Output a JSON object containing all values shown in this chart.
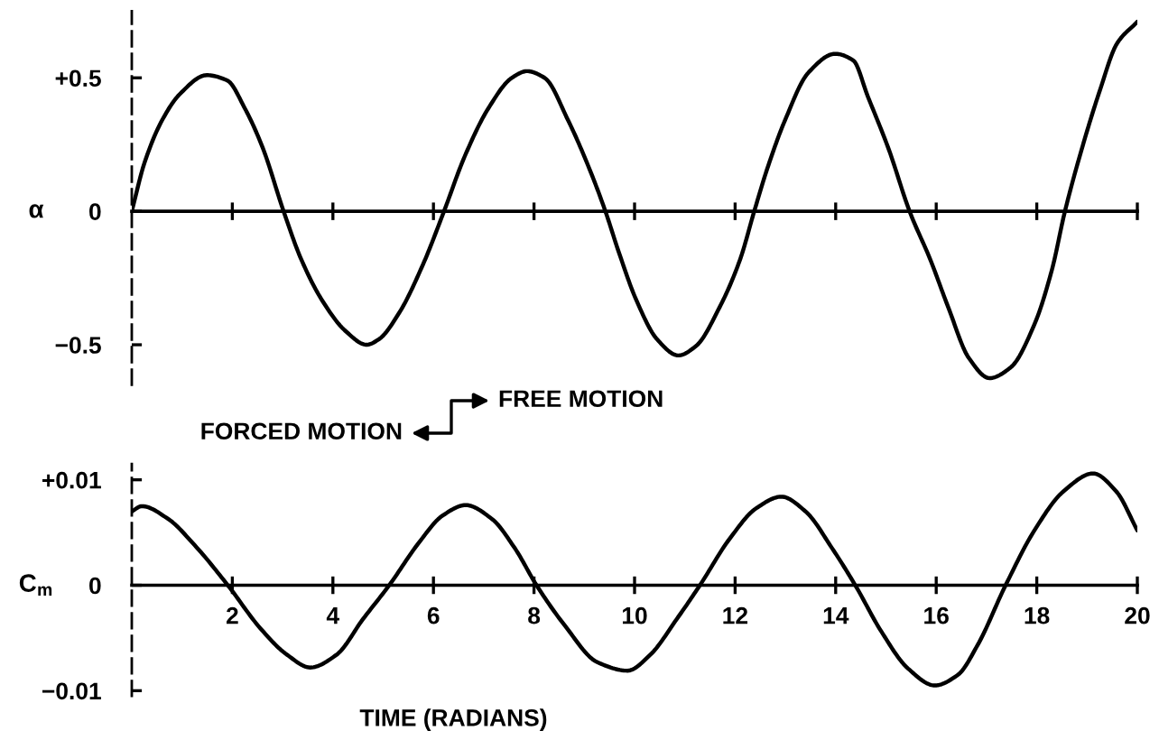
{
  "chart_data": [
    {
      "type": "line",
      "ylabel": "α",
      "tick_labels": "y",
      "xlim": [
        0,
        20
      ],
      "xticks": [
        2,
        4,
        6,
        8,
        10,
        12,
        14,
        16,
        18,
        20
      ],
      "ylim": [
        -0.65,
        0.75
      ],
      "yticks": [
        {
          "value": 0.5,
          "label": "+0.5"
        },
        0,
        {
          "value": -0.5,
          "label": "−0.5"
        }
      ],
      "annotations": [
        "FREE MOTION",
        "FORCED MOTION"
      ],
      "series": [
        {
          "color": "#000000",
          "x": [
            0,
            0.25,
            0.6,
            0.96,
            1.49,
            1.9,
            2.25,
            2.6,
            3.02,
            3.37,
            3.79,
            4.26,
            4.67,
            4.91,
            5.32,
            5.79,
            6.21,
            6.62,
            7.09,
            7.56,
            7.86,
            8.21,
            8.68,
            9.1,
            9.42,
            9.69,
            10.04,
            10.45,
            10.87,
            11.22,
            11.69,
            12.1,
            12.38,
            12.64,
            12.99,
            13.46,
            13.99,
            14.35,
            14.64,
            15.06,
            15.47,
            15.88,
            16.24,
            16.65,
            17.06,
            17.48,
            17.95,
            18.3,
            18.56,
            18.89,
            19.25,
            19.6,
            20
          ],
          "values": [
            0,
            0.18,
            0.34,
            0.44,
            0.51,
            0.49,
            0.385,
            0.24,
            0,
            -0.18,
            -0.335,
            -0.45,
            -0.5,
            -0.48,
            -0.38,
            -0.2,
            0,
            0.205,
            0.385,
            0.5,
            0.525,
            0.5,
            0.34,
            0.16,
            0,
            -0.155,
            -0.335,
            -0.48,
            -0.54,
            -0.505,
            -0.36,
            -0.18,
            0,
            0.16,
            0.34,
            0.52,
            0.59,
            0.565,
            0.43,
            0.23,
            0,
            -0.18,
            -0.36,
            -0.55,
            -0.625,
            -0.585,
            -0.425,
            -0.22,
            0,
            0.23,
            0.45,
            0.63,
            0.71
          ]
        }
      ]
    },
    {
      "type": "line",
      "ylabel": "C$_{m}$",
      "xlabel": "TIME (RADIANS)",
      "xlim": [
        0,
        20
      ],
      "xticks": [
        2,
        4,
        6,
        8,
        10,
        12,
        14,
        16,
        18,
        20
      ],
      "ylim": [
        -0.0105,
        0.0115
      ],
      "yticks": [
        {
          "value": 0.01,
          "label": "+0.01"
        },
        0,
        {
          "value": -0.01,
          "label": "−0.01"
        }
      ],
      "series": [
        {
          "color": "#000000",
          "x": [
            0,
            0.2,
            0.72,
            1.25,
            1.91,
            2.56,
            3.09,
            3.55,
            4.07,
            4.6,
            5.12,
            5.72,
            6.18,
            6.64,
            7.16,
            7.62,
            8.05,
            8.61,
            9.26,
            9.86,
            10.31,
            10.84,
            11.3,
            11.89,
            12.42,
            12.92,
            13.4,
            13.93,
            14.39,
            14.91,
            15.44,
            15.97,
            16.43,
            16.82,
            17.38,
            17.94,
            18.53,
            19.12,
            19.58,
            20
          ],
          "values": [
            0.007,
            0.0075,
            0.0063,
            0.0038,
            0,
            -0.0041,
            -0.0066,
            -0.0078,
            -0.0066,
            -0.0032,
            0,
            0.0041,
            0.0066,
            0.0076,
            0.0063,
            0.0035,
            0,
            -0.0038,
            -0.0073,
            -0.0081,
            -0.0066,
            -0.0032,
            0,
            0.0044,
            0.0073,
            0.0084,
            0.007,
            0.0035,
            0,
            -0.0044,
            -0.0079,
            -0.0095,
            -0.0085,
            -0.0057,
            0,
            0.0051,
            0.0089,
            0.0106,
            0.0089,
            0.0052
          ]
        }
      ]
    }
  ]
}
